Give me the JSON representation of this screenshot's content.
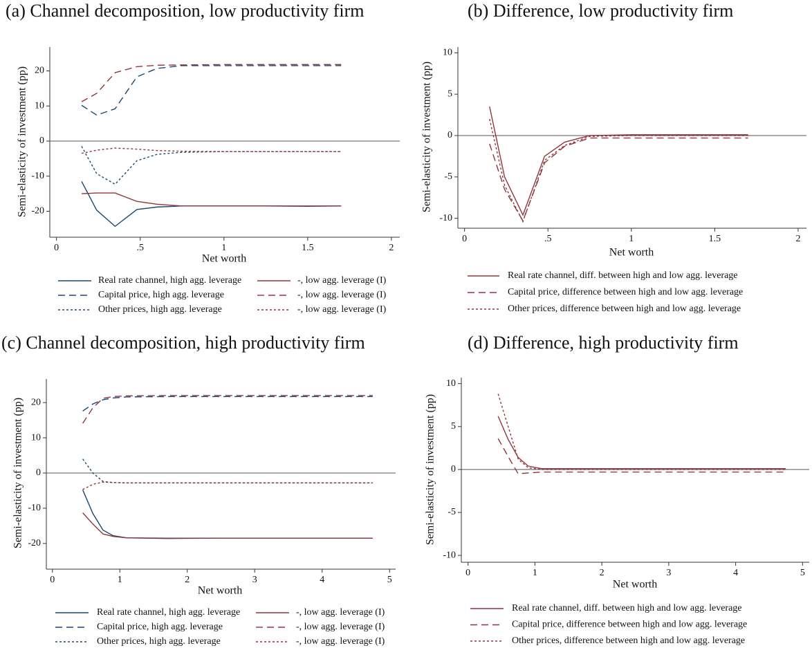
{
  "chart_data": [
    {
      "type": "line",
      "title": "(a) Channel decomposition, low productivity firm",
      "xlabel": "Net worth",
      "ylabel": "Semi-elasticity of investment (pp)",
      "x": [
        0.15,
        0.24,
        0.35,
        0.48,
        0.6,
        0.75,
        1,
        1.25,
        1.5,
        1.7
      ],
      "xlim": [
        -0.04,
        2.05
      ],
      "ylim": [
        -27.4,
        26.8
      ],
      "xticks": [
        0,
        {
          "value": 0.5,
          "label": ".5"
        },
        1,
        1.5,
        2
      ],
      "yticks": [
        -20,
        -10,
        0,
        10,
        20
      ],
      "reference_line": 0,
      "legend_columns": 2,
      "series": [
        {
          "name": "Real rate channel, high agg. leverage",
          "color": "#1a476f",
          "dash": "solid",
          "values": [
            -11.5,
            -19.7,
            -24.3,
            -19.5,
            -18.8,
            -18.5,
            -18.5,
            -18.5,
            -18.6,
            -18.5
          ]
        },
        {
          "name": "-, low agg. leverage (I)",
          "color": "#90353b",
          "dash": "solid",
          "values": [
            -15,
            -14.8,
            -14.8,
            -17.2,
            -18,
            -18.5,
            -18.5,
            -18.5,
            -18.5,
            -18.5
          ]
        },
        {
          "name": "Capital price, high agg. leverage",
          "color": "#1a476f",
          "dash": "dashed",
          "values": [
            10.2,
            7.4,
            9.2,
            18.3,
            20.7,
            21.5,
            21.5,
            21.5,
            21.5,
            21.5
          ]
        },
        {
          "name": "-, low agg. leverage (I)",
          "color": "#90353b",
          "dash": "dashed",
          "values": [
            11.2,
            13.6,
            19.5,
            21.2,
            21.6,
            21.7,
            21.8,
            21.8,
            21.8,
            21.8
          ]
        },
        {
          "name": "Other prices, high agg. leverage",
          "color": "#1a476f",
          "dash": "dotted",
          "values": [
            -1.5,
            -9.3,
            -12.3,
            -5.6,
            -3.8,
            -3.2,
            -3,
            -3,
            -3,
            -3
          ]
        },
        {
          "name": "-, low agg. leverage (I)",
          "color": "#90353b",
          "dash": "dotted",
          "values": [
            -3.5,
            -2.6,
            -2,
            -2.3,
            -2.7,
            -2.9,
            -3,
            -3,
            -3,
            -3
          ]
        }
      ]
    },
    {
      "type": "line",
      "title": "(b) Difference, low productivity firm",
      "xlabel": "Net worth",
      "ylabel": "Semi-elasticity of investment (pp)",
      "x": [
        0.15,
        0.24,
        0.35,
        0.48,
        0.6,
        0.75,
        1,
        1.25,
        1.5,
        1.7
      ],
      "xlim": [
        -0.04,
        2.05
      ],
      "ylim": [
        -11.2,
        10.7
      ],
      "xticks": [
        0,
        {
          "value": 0.5,
          "label": ".5"
        },
        1,
        1.5,
        2
      ],
      "yticks": [
        -10,
        -5,
        0,
        5,
        10
      ],
      "reference_line": 0,
      "legend_columns": 1,
      "series": [
        {
          "name": "Real rate channel, diff. between high and low agg. leverage",
          "color": "#90353b",
          "dash": "solid",
          "values": [
            3.5,
            -5,
            -9.6,
            -2.5,
            -0.8,
            0,
            0.1,
            0.1,
            0.1,
            0.1
          ]
        },
        {
          "name": "Capital price, difference between high and low agg. leverage",
          "color": "#90353b",
          "dash": "dashed",
          "values": [
            -1,
            -6.5,
            -10.3,
            -3.3,
            -1.3,
            -0.3,
            -0.3,
            -0.3,
            -0.3,
            -0.3
          ]
        },
        {
          "name": "Other prices, difference between high and low agg. leverage",
          "color": "#90353b",
          "dash": "dotted",
          "values": [
            2,
            -6,
            -10.4,
            -3,
            -1.2,
            -0.1,
            0,
            0,
            0,
            0
          ]
        }
      ]
    },
    {
      "type": "line",
      "title": "(c) Channel decomposition, high productivity firm",
      "xlabel": "Net worth",
      "ylabel": "Semi-elasticity of investment (pp)",
      "x": [
        0.45,
        0.6,
        0.75,
        0.9,
        1.1,
        1.7,
        2.5,
        3.5,
        4.75
      ],
      "xlim": [
        -0.09,
        5.09
      ],
      "ylim": [
        -27.3,
        26.7
      ],
      "xticks": [
        0,
        1,
        2,
        3,
        4,
        5
      ],
      "yticks": [
        -20,
        -10,
        0,
        10,
        20
      ],
      "reference_line": 0,
      "legend_columns": 2,
      "series": [
        {
          "name": "Real rate channel, high agg. leverage",
          "color": "#1a476f",
          "dash": "solid",
          "values": [
            -4.8,
            -11.5,
            -16.2,
            -17.8,
            -18.4,
            -18.6,
            -18.5,
            -18.5,
            -18.5
          ]
        },
        {
          "name": "-, low agg. leverage (I)",
          "color": "#90353b",
          "dash": "solid",
          "values": [
            -11.3,
            -14.5,
            -17.3,
            -18,
            -18.4,
            -18.5,
            -18.5,
            -18.5,
            -18.5
          ]
        },
        {
          "name": "Capital price, high agg. leverage",
          "color": "#1a476f",
          "dash": "dashed",
          "values": [
            17.6,
            19.6,
            20.8,
            21.3,
            21.6,
            21.7,
            21.7,
            21.7,
            21.7
          ]
        },
        {
          "name": "-, low agg. leverage (I)",
          "color": "#90353b",
          "dash": "dashed",
          "values": [
            14.1,
            18.5,
            21.2,
            21.7,
            21.9,
            22,
            22,
            22,
            22
          ]
        },
        {
          "name": "Other prices, high agg. leverage",
          "color": "#1a476f",
          "dash": "dotted",
          "values": [
            4,
            0,
            -2.4,
            -2.7,
            -2.8,
            -2.8,
            -2.8,
            -2.8,
            -2.8
          ]
        },
        {
          "name": "-, low agg. leverage (I)",
          "color": "#90353b",
          "dash": "dotted",
          "values": [
            -4.7,
            -3.2,
            -2.6,
            -2.7,
            -2.8,
            -2.8,
            -2.8,
            -2.8,
            -2.8
          ]
        }
      ]
    },
    {
      "type": "line",
      "title": "(d) Difference, high productivity firm",
      "xlabel": "Net worth",
      "ylabel": "Semi-elasticity of investment (pp)",
      "x": [
        0.45,
        0.6,
        0.75,
        0.9,
        1.1,
        1.7,
        2.5,
        3.5,
        4.75
      ],
      "xlim": [
        -0.1,
        5.1
      ],
      "ylim": [
        -10.8,
        10.7
      ],
      "xticks": [
        0,
        1,
        2,
        3,
        4,
        5
      ],
      "yticks": [
        -10,
        -5,
        0,
        5,
        10
      ],
      "reference_line": 0,
      "legend_columns": 1,
      "series": [
        {
          "name": "Real rate channel, diff. between high and low agg. leverage",
          "color": "#90353b",
          "dash": "solid",
          "values": [
            6.2,
            3.5,
            1.4,
            0.4,
            0.1,
            0.1,
            0.1,
            0.1,
            0.1
          ]
        },
        {
          "name": "Capital price, difference between high and low agg. leverage",
          "color": "#90353b",
          "dash": "dashed",
          "values": [
            3.6,
            1.5,
            -0.5,
            -0.4,
            -0.3,
            -0.3,
            -0.3,
            -0.3,
            -0.3
          ]
        },
        {
          "name": "Other prices, difference between high and low agg. leverage",
          "color": "#90353b",
          "dash": "dotted",
          "values": [
            8.8,
            5,
            1.2,
            0.2,
            0,
            0,
            0,
            0,
            0
          ]
        }
      ]
    }
  ]
}
